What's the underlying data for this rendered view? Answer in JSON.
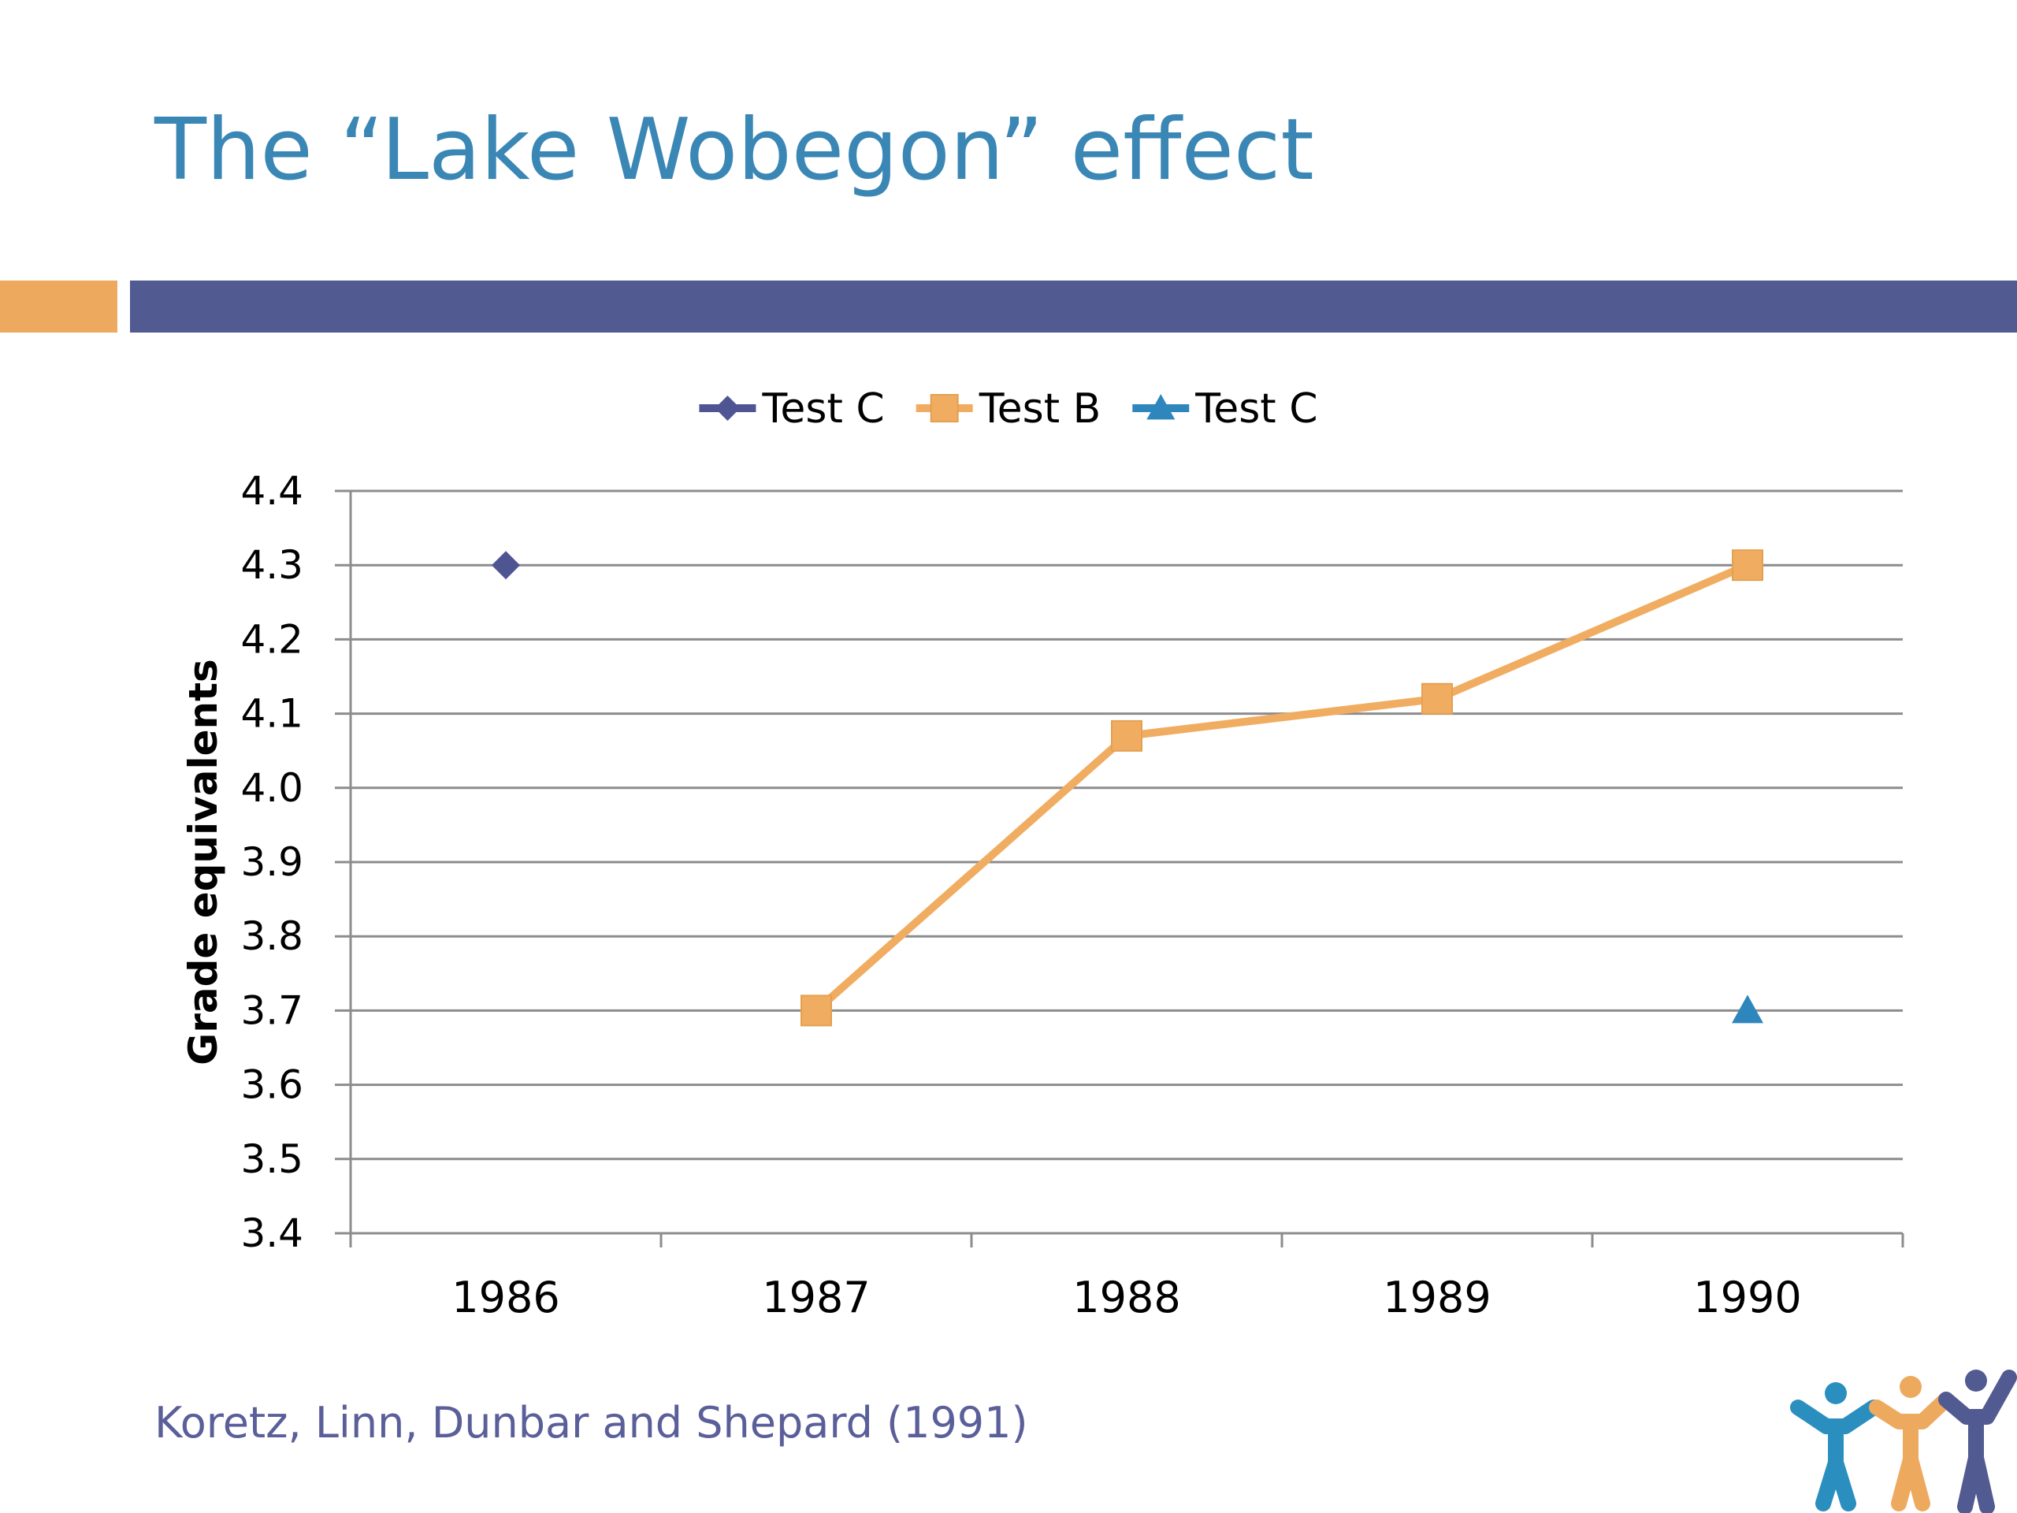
{
  "slide": {
    "title": "The “Lake Wobegon” effect",
    "source": "Koretz, Linn, Dunbar and Shepard (1991)"
  },
  "colors": {
    "title": "#3a87b5",
    "accent_orange": "#edaa5f",
    "accent_navy": "#525a92",
    "source_text": "#5a5f99"
  },
  "logo": {
    "name": "three-people-logo",
    "figure_colors": [
      "#2a8fbf",
      "#edaa5f",
      "#525a92"
    ]
  },
  "chart_data": {
    "type": "line",
    "title": "",
    "xlabel": "",
    "ylabel": "Grade equivalents",
    "categories": [
      "1986",
      "1987",
      "1988",
      "1989",
      "1990"
    ],
    "ylim": [
      3.4,
      4.4
    ],
    "yticks": [
      "4.4",
      "4.3",
      "4.2",
      "4.1",
      "4.0",
      "3.9",
      "3.8",
      "3.7",
      "3.6",
      "3.5",
      "3.4"
    ],
    "grid": true,
    "legend_position": "top",
    "series": [
      {
        "name": "Test C",
        "marker": "diamond",
        "color": "#4f5593",
        "values": [
          4.3,
          null,
          null,
          null,
          null
        ]
      },
      {
        "name": "Test B",
        "marker": "square",
        "color": "#f0ad62",
        "values": [
          null,
          3.7,
          4.07,
          4.12,
          4.3
        ]
      },
      {
        "name": "Test C",
        "marker": "triangle",
        "color": "#2f86bd",
        "values": [
          null,
          null,
          null,
          null,
          3.7
        ]
      }
    ]
  }
}
